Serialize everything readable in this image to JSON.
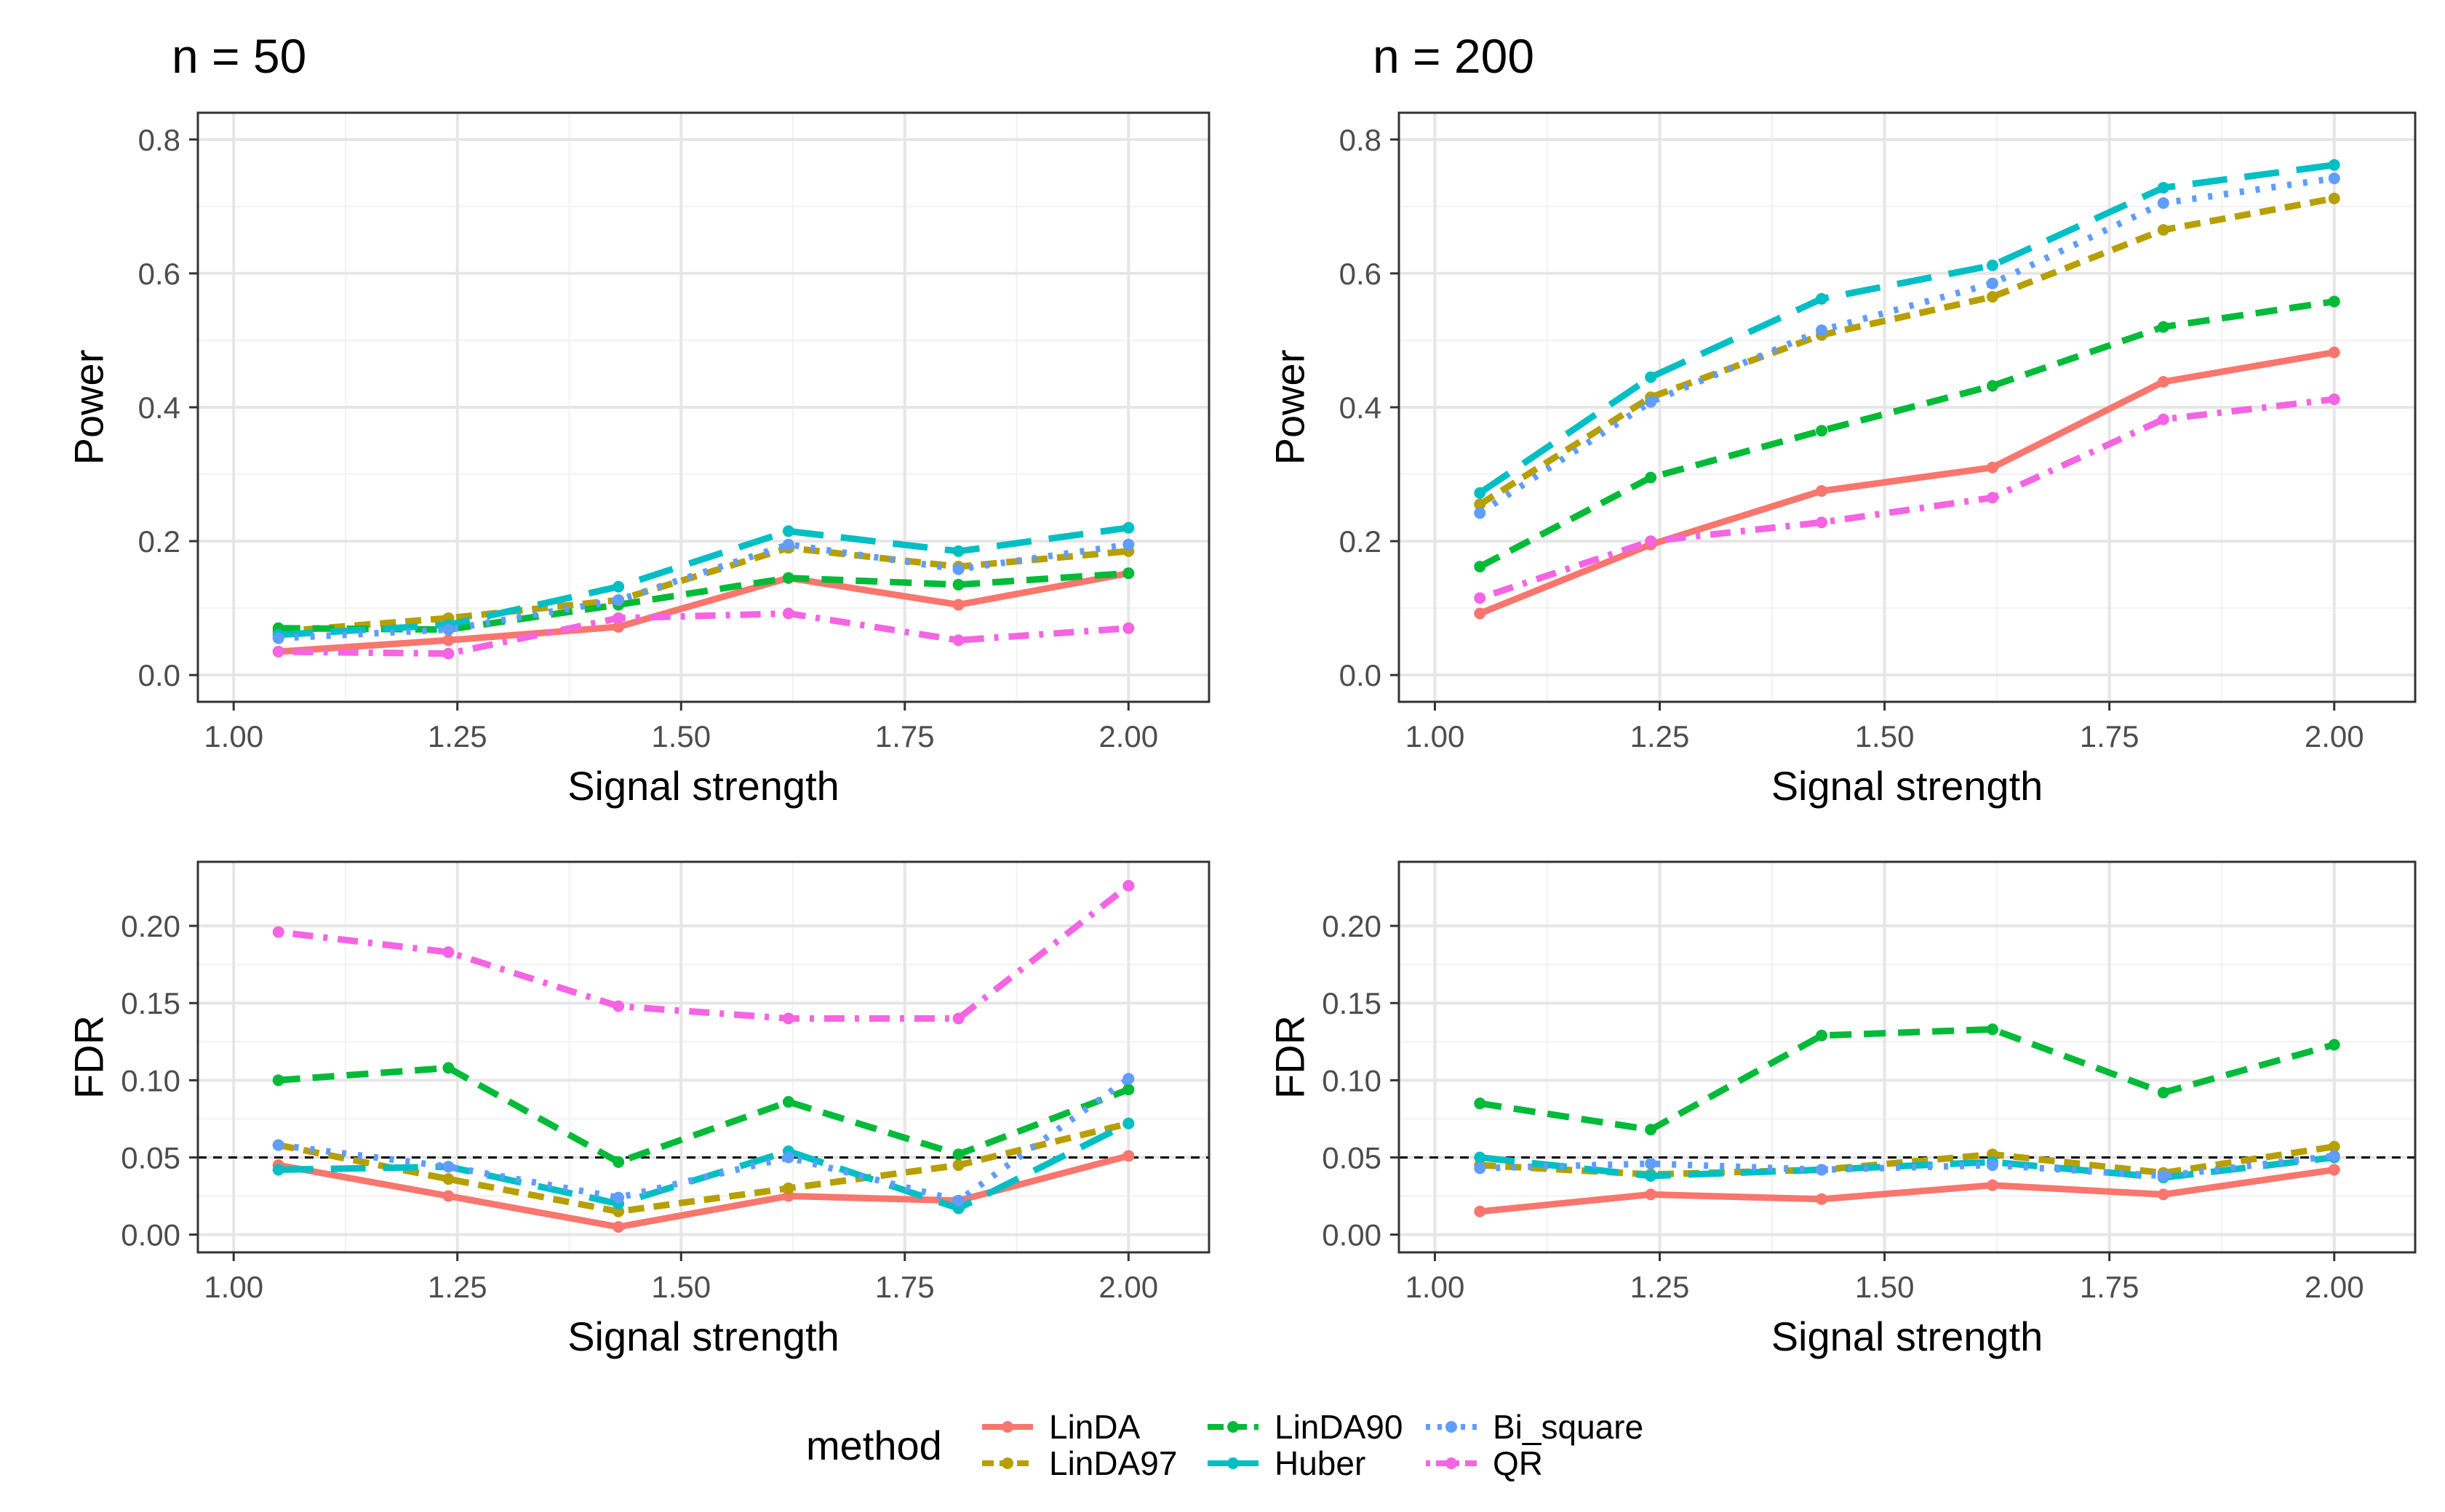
{
  "chart_data": [
    {
      "type": "line",
      "title": "n = 50",
      "xlabel": "Signal strength",
      "ylabel": "Power",
      "xlim": [
        0.96,
        2.09
      ],
      "ylim": [
        -0.04,
        0.84
      ],
      "xticks": [
        1.0,
        1.25,
        1.5,
        1.75,
        2.0
      ],
      "xtick_labels": [
        "1.00",
        "1.25",
        "1.50",
        "1.75",
        "2.00"
      ],
      "yticks": [
        0.0,
        0.2,
        0.4,
        0.6,
        0.8
      ],
      "ytick_labels": [
        "0.0",
        "0.2",
        "0.4",
        "0.6",
        "0.8"
      ],
      "x": [
        1.05,
        1.24,
        1.43,
        1.62,
        1.81,
        2.0
      ],
      "series": [
        {
          "name": "LinDA",
          "values": [
            0.035,
            0.052,
            0.072,
            0.145,
            0.105,
            0.152
          ]
        },
        {
          "name": "LinDA97",
          "values": [
            0.065,
            0.085,
            0.112,
            0.19,
            0.162,
            0.185
          ]
        },
        {
          "name": "LinDA90",
          "values": [
            0.07,
            0.068,
            0.105,
            0.145,
            0.135,
            0.152
          ]
        },
        {
          "name": "Huber",
          "values": [
            0.06,
            0.075,
            0.132,
            0.215,
            0.185,
            0.22
          ]
        },
        {
          "name": "Bi_square",
          "values": [
            0.055,
            0.068,
            0.112,
            0.195,
            0.158,
            0.195
          ]
        },
        {
          "name": "QR",
          "values": [
            0.035,
            0.032,
            0.085,
            0.092,
            0.052,
            0.07
          ]
        }
      ]
    },
    {
      "type": "line",
      "title": "n = 200",
      "xlabel": "Signal strength",
      "ylabel": "Power",
      "xlim": [
        0.96,
        2.09
      ],
      "ylim": [
        -0.04,
        0.84
      ],
      "xticks": [
        1.0,
        1.25,
        1.5,
        1.75,
        2.0
      ],
      "xtick_labels": [
        "1.00",
        "1.25",
        "1.50",
        "1.75",
        "2.00"
      ],
      "yticks": [
        0.0,
        0.2,
        0.4,
        0.6,
        0.8
      ],
      "ytick_labels": [
        "0.0",
        "0.2",
        "0.4",
        "0.6",
        "0.8"
      ],
      "x": [
        1.05,
        1.24,
        1.43,
        1.62,
        1.81,
        2.0
      ],
      "series": [
        {
          "name": "LinDA",
          "values": [
            0.092,
            0.195,
            0.275,
            0.31,
            0.438,
            0.482
          ]
        },
        {
          "name": "LinDA97",
          "values": [
            0.255,
            0.415,
            0.508,
            0.565,
            0.665,
            0.712
          ]
        },
        {
          "name": "LinDA90",
          "values": [
            0.162,
            0.295,
            0.365,
            0.432,
            0.52,
            0.558
          ]
        },
        {
          "name": "Huber",
          "values": [
            0.272,
            0.445,
            0.562,
            0.612,
            0.728,
            0.762
          ]
        },
        {
          "name": "Bi_square",
          "values": [
            0.242,
            0.408,
            0.515,
            0.585,
            0.705,
            0.742
          ]
        },
        {
          "name": "QR",
          "values": [
            0.115,
            0.2,
            0.228,
            0.265,
            0.382,
            0.412
          ]
        }
      ]
    },
    {
      "type": "line",
      "title": "",
      "xlabel": "Signal strength",
      "ylabel": "FDR",
      "xlim": [
        0.96,
        2.09
      ],
      "ylim": [
        -0.0115,
        0.2415
      ],
      "xticks": [
        1.0,
        1.25,
        1.5,
        1.75,
        2.0
      ],
      "xtick_labels": [
        "1.00",
        "1.25",
        "1.50",
        "1.75",
        "2.00"
      ],
      "yticks": [
        0.0,
        0.05,
        0.1,
        0.15,
        0.2
      ],
      "ytick_labels": [
        "0.00",
        "0.05",
        "0.10",
        "0.15",
        "0.20"
      ],
      "reference_line": 0.05,
      "x": [
        1.05,
        1.24,
        1.43,
        1.62,
        1.81,
        2.0
      ],
      "series": [
        {
          "name": "LinDA",
          "values": [
            0.045,
            0.025,
            0.005,
            0.025,
            0.022,
            0.051
          ]
        },
        {
          "name": "LinDA97",
          "values": [
            0.058,
            0.036,
            0.015,
            0.03,
            0.045,
            0.072
          ]
        },
        {
          "name": "LinDA90",
          "values": [
            0.1,
            0.108,
            0.047,
            0.086,
            0.052,
            0.094
          ]
        },
        {
          "name": "Huber",
          "values": [
            0.042,
            0.044,
            0.02,
            0.054,
            0.017,
            0.072
          ]
        },
        {
          "name": "Bi_square",
          "values": [
            0.058,
            0.044,
            0.024,
            0.05,
            0.022,
            0.101
          ]
        },
        {
          "name": "QR",
          "values": [
            0.196,
            0.183,
            0.148,
            0.14,
            0.14,
            0.226
          ]
        }
      ]
    },
    {
      "type": "line",
      "title": "",
      "xlabel": "Signal strength",
      "ylabel": "FDR",
      "xlim": [
        0.96,
        2.09
      ],
      "ylim": [
        -0.0115,
        0.2415
      ],
      "xticks": [
        1.0,
        1.25,
        1.5,
        1.75,
        2.0
      ],
      "xtick_labels": [
        "1.00",
        "1.25",
        "1.50",
        "1.75",
        "2.00"
      ],
      "yticks": [
        0.0,
        0.05,
        0.1,
        0.15,
        0.2
      ],
      "ytick_labels": [
        "0.00",
        "0.05",
        "0.10",
        "0.15",
        "0.20"
      ],
      "reference_line": 0.05,
      "x": [
        1.05,
        1.24,
        1.43,
        1.62,
        1.81,
        2.0
      ],
      "series": [
        {
          "name": "LinDA",
          "values": [
            0.015,
            0.026,
            0.023,
            0.032,
            0.026,
            0.042
          ]
        },
        {
          "name": "LinDA97",
          "values": [
            0.045,
            0.039,
            0.042,
            0.052,
            0.04,
            0.057
          ]
        },
        {
          "name": "LinDA90",
          "values": [
            0.085,
            0.068,
            0.129,
            0.133,
            0.092,
            0.123
          ]
        },
        {
          "name": "Huber",
          "values": [
            0.05,
            0.038,
            0.042,
            0.047,
            0.037,
            0.05
          ]
        },
        {
          "name": "Bi_square",
          "values": [
            0.043,
            0.046,
            0.042,
            0.045,
            0.038,
            0.051
          ]
        }
      ]
    }
  ],
  "legend": {
    "title": "method",
    "entries": [
      "LinDA",
      "LinDA97",
      "LinDA90",
      "Huber",
      "Bi_square",
      "QR"
    ]
  },
  "styles": {
    "LinDA": {
      "color": "#F8766D",
      "dash": "solid"
    },
    "LinDA97": {
      "color": "#B79F00",
      "dash": "short"
    },
    "LinDA90": {
      "color": "#00BA38",
      "dash": "dashed"
    },
    "Huber": {
      "color": "#00BFC4",
      "dash": "long"
    },
    "Bi_square": {
      "color": "#619CFF",
      "dash": "dotted"
    },
    "QR": {
      "color": "#F564E3",
      "dash": "dotdash"
    }
  },
  "reference_color": "#000000"
}
